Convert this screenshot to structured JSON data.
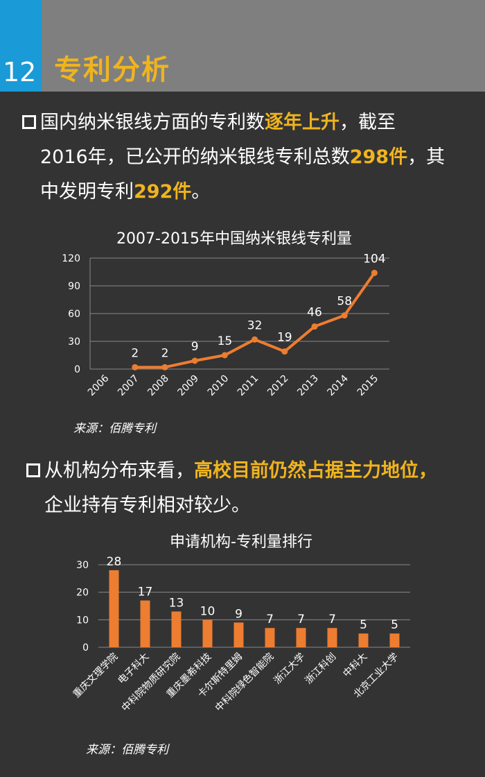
{
  "header": {
    "number": "12",
    "title": "专利分析",
    "colors": {
      "header_bg": "#7f7f7f",
      "number_bg": "#1a9ad6",
      "accent": "#f0b41e",
      "page_bg": "#333333"
    }
  },
  "section1": {
    "bullet_icon": "square-bullet-icon",
    "text_a": "国内纳米银线方面的专利数",
    "hl_a": "逐年上升",
    "text_b": "，截至",
    "text_c": "2016年，已公开的纳米银线专利总数",
    "hl_b": "298件",
    "text_d": "，其",
    "text_e": "中发明专利",
    "hl_c": "292件",
    "text_f": "。"
  },
  "section2": {
    "bullet_icon": "square-bullet-icon",
    "text_a": "从机构分布来看，",
    "hl_a": "高校目前仍然占据主力地位，",
    "text_b": "企业持有专利相对较少。"
  },
  "source1": "来源：佰腾专利",
  "source2": "来源：佰腾专利",
  "chart_data": [
    {
      "type": "line",
      "title": "2007-2015年中国纳米银线专利量",
      "x": [
        "2006",
        "2007",
        "2008",
        "2009",
        "2010",
        "2011",
        "2012",
        "2013",
        "2014",
        "2015"
      ],
      "points": [
        {
          "x": "2007",
          "y": 2
        },
        {
          "x": "2008",
          "y": 2
        },
        {
          "x": "2009",
          "y": 9
        },
        {
          "x": "2010",
          "y": 15
        },
        {
          "x": "2011",
          "y": 32
        },
        {
          "x": "2012",
          "y": 19
        },
        {
          "x": "2013",
          "y": 46
        },
        {
          "x": "2014",
          "y": 58
        },
        {
          "x": "2015",
          "y": 104
        }
      ],
      "yticks": [
        "0",
        "30",
        "60",
        "90",
        "120"
      ],
      "ylim": [
        0,
        120
      ],
      "grid": true,
      "color": "#ed7d31"
    },
    {
      "type": "bar",
      "title": "申请机构-专利量排行",
      "categories": [
        "重庆文理学院",
        "电子科大",
        "中科院物质研究院",
        "重庆墨希科技",
        "卡尔斯特里姆",
        "中科院绿色智能院",
        "浙江大学",
        "浙江科创",
        "中科大",
        "北京工业大学"
      ],
      "values": [
        28,
        17,
        13,
        10,
        9,
        7,
        7,
        7,
        5,
        5
      ],
      "yticks": [
        "0",
        "10",
        "20",
        "30"
      ],
      "ylim": [
        0,
        30
      ],
      "grid": true,
      "color": "#ed7d31"
    }
  ]
}
